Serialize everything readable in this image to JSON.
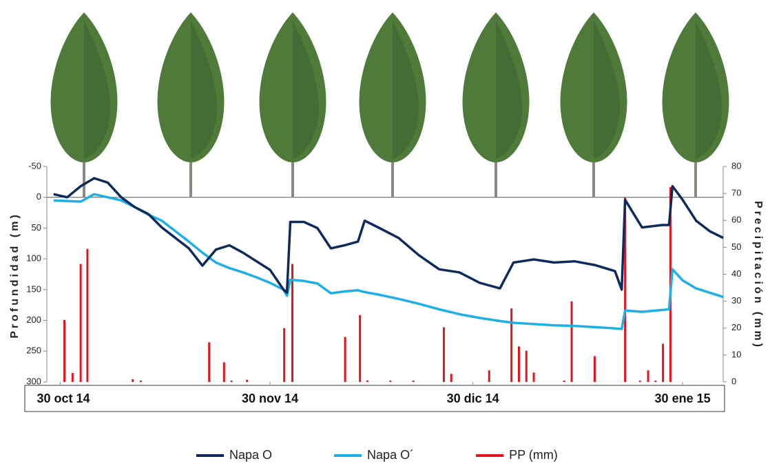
{
  "chart_data": {
    "type": "line",
    "y_label": "Profundidad (m)",
    "y2_label": "Precipitación (mm)",
    "x": [
      0,
      2,
      4,
      6,
      8,
      10,
      12,
      14,
      16,
      18,
      20,
      22,
      24,
      26,
      28,
      30,
      32,
      34,
      34.5,
      35,
      37,
      39,
      41,
      43,
      45,
      46,
      48,
      51,
      54,
      57,
      60,
      63,
      66,
      68,
      71,
      74,
      77,
      80,
      83,
      84,
      84.5,
      87,
      90,
      91,
      91.5,
      93,
      95,
      97,
      99
    ],
    "xlim": [
      -1,
      99
    ],
    "xticks": [
      {
        "value": 1,
        "label": "30 oct 14"
      },
      {
        "value": 32,
        "label": "30 nov 14"
      },
      {
        "value": 62,
        "label": "30 dic 14"
      },
      {
        "value": 93,
        "label": "30 ene 15"
      }
    ],
    "ylim": [
      -50,
      300
    ],
    "y_inverted": true,
    "yticks": [
      -50,
      0,
      50,
      100,
      150,
      200,
      250,
      300
    ],
    "y2lim": [
      0,
      80
    ],
    "y2ticks": [
      0,
      10,
      20,
      30,
      40,
      50,
      60,
      70,
      80
    ],
    "legend": "bottom",
    "series": [
      {
        "name": "Napa O",
        "color": "#0e2a5c",
        "type": "line",
        "values": [
          -5,
          0,
          -18,
          -31,
          -24,
          0,
          16,
          27,
          49,
          66,
          83,
          111,
          85,
          78,
          90,
          104,
          118,
          150,
          155,
          40,
          40,
          50,
          83,
          78,
          72,
          38,
          49,
          66,
          94,
          117,
          122,
          139,
          148,
          106,
          101,
          106,
          104,
          110,
          120,
          150,
          4,
          49,
          45,
          45,
          -18,
          4,
          38,
          55,
          66
        ]
      },
      {
        "name": "Napa O´",
        "color": "#1cb0e6",
        "type": "line",
        "values": [
          5,
          6,
          7,
          -5,
          0,
          5,
          16,
          28,
          38,
          55,
          72,
          90,
          106,
          115,
          122,
          130,
          139,
          150,
          160,
          134,
          136,
          140,
          156,
          153,
          151,
          154,
          158,
          165,
          173,
          182,
          190,
          196,
          201,
          204,
          206,
          208,
          209,
          211,
          213,
          214,
          184,
          186,
          183,
          182,
          117,
          135,
          148,
          155,
          162
        ]
      },
      {
        "name": "PP (mm)",
        "color": "#e3141c",
        "type": "bar",
        "axis": "y2",
        "x": [
          1.6,
          2.8,
          4,
          5,
          11.7,
          12.9,
          23,
          25.2,
          26.3,
          28.6,
          34.1,
          35.3,
          43.1,
          45.3,
          46.4,
          49.8,
          53.2,
          57.7,
          58.8,
          64.4,
          67.7,
          68.8,
          69.9,
          71,
          75.5,
          76.6,
          80,
          84.5,
          86.7,
          87.9,
          89,
          90.1,
          91.2
        ],
        "values": [
          23,
          3.3,
          43.8,
          49.4,
          1,
          0.5,
          14.7,
          7.3,
          0.5,
          0.8,
          20,
          43.8,
          16.7,
          24.8,
          0.5,
          0.5,
          0.5,
          20.3,
          3,
          4.3,
          27.3,
          13.2,
          11.6,
          3.5,
          0.5,
          29.9,
          9.6,
          68.4,
          0.5,
          4.3,
          0.5,
          14.2,
          72.4
        ]
      }
    ]
  }
}
